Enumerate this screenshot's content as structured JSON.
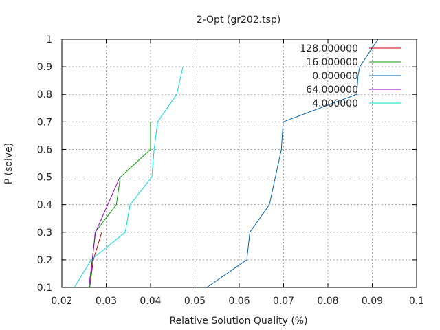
{
  "chart_data": {
    "type": "line",
    "title": "2-Opt (gr202.tsp)",
    "xlabel": "Relative Solution Quality (%)",
    "ylabel": "P (solve)",
    "xlim": [
      0.02,
      0.1
    ],
    "ylim": [
      0.1,
      1.0
    ],
    "xticks": [
      "0.02",
      "0.03",
      "0.04",
      "0.05",
      "0.06",
      "0.07",
      "0.08",
      "0.09",
      "0.1"
    ],
    "yticks": [
      "0.1",
      "0.2",
      "0.3",
      "0.4",
      "0.5",
      "0.6",
      "0.7",
      "0.8",
      "0.9",
      "1"
    ],
    "grid": true,
    "legend_position": "top-right",
    "series": [
      {
        "name": "128.000000",
        "color": "#cc0000",
        "x": [
          0.0263,
          0.0271,
          0.029
        ],
        "y": [
          0.1,
          0.2,
          0.3
        ]
      },
      {
        "name": "16.000000",
        "color": "#00a000",
        "x": [
          0.0263,
          0.0275,
          0.0323,
          0.0332,
          0.04,
          0.04
        ],
        "y": [
          0.1,
          0.3,
          0.4,
          0.5,
          0.6,
          0.7
        ]
      },
      {
        "name": "0.000000",
        "color": "#0060ad",
        "x": [
          0.0527,
          0.0617,
          0.0624,
          0.0668,
          0.0695,
          0.0699,
          0.0865,
          0.0868,
          0.0872,
          0.0913
        ],
        "y": [
          0.1,
          0.2,
          0.3,
          0.4,
          0.6,
          0.7,
          0.8,
          0.87,
          0.9,
          1.0
        ]
      },
      {
        "name": "64.000000",
        "color": "#9400d3",
        "x": [
          0.0261,
          0.0276,
          0.0331
        ],
        "y": [
          0.1,
          0.3,
          0.5
        ]
      },
      {
        "name": "4.000000",
        "color": "#00dddd",
        "x": [
          0.0228,
          0.0266,
          0.0343,
          0.0354,
          0.0403,
          0.0408,
          0.0416,
          0.0459,
          0.0473
        ],
        "y": [
          0.1,
          0.2,
          0.3,
          0.4,
          0.5,
          0.6,
          0.7,
          0.8,
          0.9
        ]
      }
    ]
  }
}
